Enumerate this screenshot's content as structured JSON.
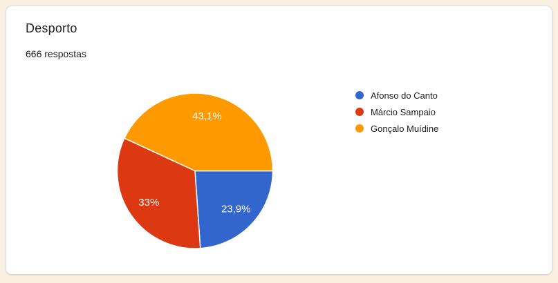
{
  "page": {
    "background_color": "#FAF0E1"
  },
  "card": {
    "title": "Desporto",
    "response_count": "666 respostas"
  },
  "chart_data": {
    "type": "pie",
    "title": "Desporto",
    "subtitle": "666 respostas",
    "legend_position": "right",
    "start_angle_deg": 0,
    "direction": "clockwise",
    "slices": [
      {
        "label": "Afonso do Canto",
        "value": 23.9,
        "display": "23,9%",
        "color": "#3366CC"
      },
      {
        "label": "Márcio Sampaio",
        "value": 33,
        "display": "33%",
        "color": "#DC3912"
      },
      {
        "label": "Gonçalo Muídine",
        "value": 43.1,
        "display": "43,1%",
        "color": "#FF9900"
      }
    ]
  }
}
